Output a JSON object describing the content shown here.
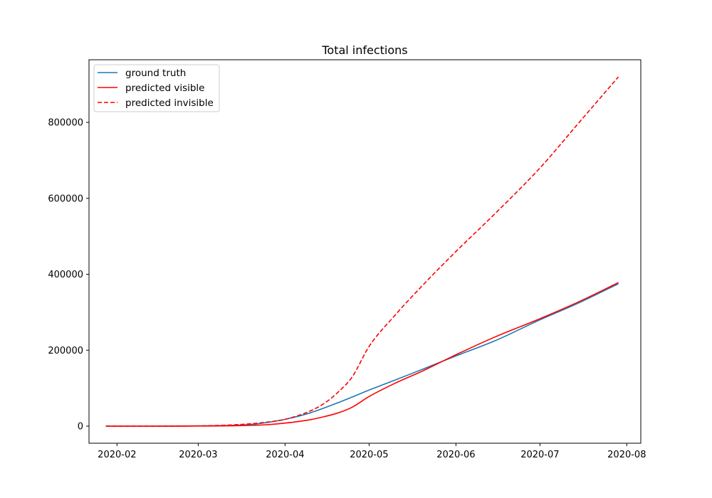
{
  "chart_data": {
    "type": "line",
    "title": "Total infections",
    "xlabel": "",
    "ylabel": "",
    "x_ticks": [
      "2020-02",
      "2020-03",
      "2020-04",
      "2020-05",
      "2020-06",
      "2020-07",
      "2020-08"
    ],
    "y_ticks": [
      "0",
      "200000",
      "400000",
      "600000",
      "800000"
    ],
    "xlim": [
      "2020-01-22",
      "2020-08-06"
    ],
    "ylim": [
      -45000,
      965000
    ],
    "grid": false,
    "legend_position": "top-left",
    "series": [
      {
        "name": "ground truth",
        "color": "#1f77b4",
        "style": "solid",
        "points": [
          [
            "2020-01-28",
            0
          ],
          [
            "2020-02-15",
            0
          ],
          [
            "2020-03-01",
            500
          ],
          [
            "2020-03-15",
            2500
          ],
          [
            "2020-03-22",
            6000
          ],
          [
            "2020-04-01",
            18000
          ],
          [
            "2020-04-10",
            35000
          ],
          [
            "2020-04-20",
            62000
          ],
          [
            "2020-05-01",
            95000
          ],
          [
            "2020-05-15",
            135000
          ],
          [
            "2020-06-01",
            185000
          ],
          [
            "2020-06-15",
            225000
          ],
          [
            "2020-07-01",
            280000
          ],
          [
            "2020-07-15",
            325000
          ],
          [
            "2020-07-29",
            375000
          ]
        ]
      },
      {
        "name": "predicted visible",
        "color": "#ff0000",
        "style": "solid",
        "points": [
          [
            "2020-01-28",
            0
          ],
          [
            "2020-02-15",
            0
          ],
          [
            "2020-03-01",
            200
          ],
          [
            "2020-03-15",
            1200
          ],
          [
            "2020-03-25",
            3500
          ],
          [
            "2020-04-01",
            8000
          ],
          [
            "2020-04-10",
            17000
          ],
          [
            "2020-04-15",
            25000
          ],
          [
            "2020-04-20",
            35000
          ],
          [
            "2020-04-25",
            50000
          ],
          [
            "2020-05-01",
            78000
          ],
          [
            "2020-05-10",
            112000
          ],
          [
            "2020-05-20",
            145000
          ],
          [
            "2020-06-01",
            188000
          ],
          [
            "2020-06-15",
            235000
          ],
          [
            "2020-07-01",
            283000
          ],
          [
            "2020-07-15",
            328000
          ],
          [
            "2020-07-29",
            378000
          ]
        ]
      },
      {
        "name": "predicted invisible",
        "color": "#ff0000",
        "style": "dashed",
        "points": [
          [
            "2020-01-28",
            0
          ],
          [
            "2020-02-15",
            0
          ],
          [
            "2020-03-01",
            600
          ],
          [
            "2020-03-15",
            4000
          ],
          [
            "2020-03-25",
            10000
          ],
          [
            "2020-04-01",
            18000
          ],
          [
            "2020-04-10",
            40000
          ],
          [
            "2020-04-15",
            60000
          ],
          [
            "2020-04-20",
            90000
          ],
          [
            "2020-04-25",
            130000
          ],
          [
            "2020-05-01",
            210000
          ],
          [
            "2020-05-10",
            290000
          ],
          [
            "2020-05-20",
            370000
          ],
          [
            "2020-06-01",
            460000
          ],
          [
            "2020-06-15",
            560000
          ],
          [
            "2020-07-01",
            680000
          ],
          [
            "2020-07-15",
            800000
          ],
          [
            "2020-07-29",
            920000
          ]
        ]
      }
    ]
  }
}
